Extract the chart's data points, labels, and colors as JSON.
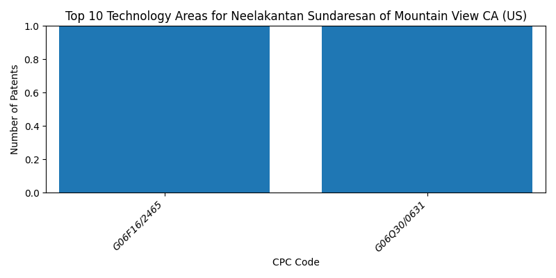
{
  "title": "Top 10 Technology Areas for Neelakantan Sundaresan of Mountain View CA (US)",
  "xlabel": "CPC Code",
  "ylabel": "Number of Patents",
  "categories": [
    "G06F16/2465",
    "G06Q30/0631"
  ],
  "values": [
    1,
    1
  ],
  "bar_color": "#1f77b4",
  "ylim": [
    0,
    1.0
  ],
  "bar_width": 0.8,
  "figsize": [
    8,
    4
  ],
  "dpi": 100
}
